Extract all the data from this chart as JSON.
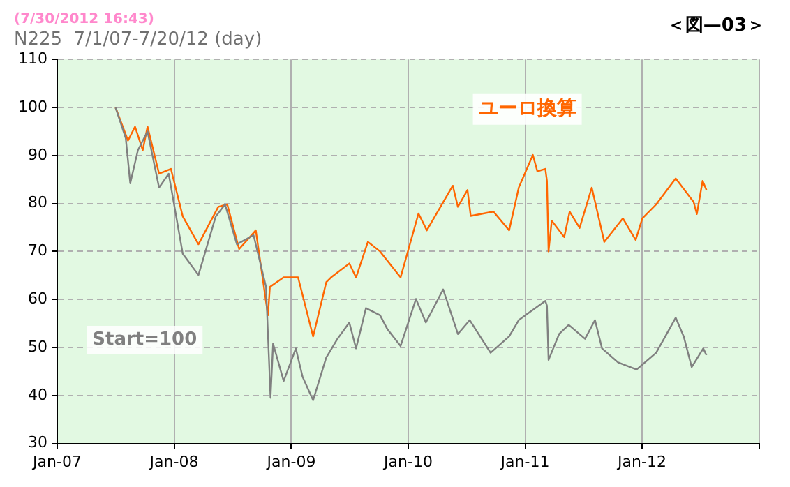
{
  "chart_data": {
    "type": "line",
    "title": "(7/30/2012 16:43)",
    "subtitle": "N225  7/1/07-7/20/12 (day)",
    "annotations": [
      "＜図—03＞",
      "Start=100"
    ],
    "xlim": [
      "2007-01",
      "2013-01"
    ],
    "xticks": [
      {
        "value": "2007-01",
        "label": "Jan-07"
      },
      {
        "value": "2008-01",
        "label": "Jan-08"
      },
      {
        "value": "2009-01",
        "label": "Jan-09"
      },
      {
        "value": "2010-01",
        "label": "Jan-10"
      },
      {
        "value": "2011-01",
        "label": "Jan-11"
      },
      {
        "value": "2012-01",
        "label": "Jan-12"
      },
      {
        "value": "2013-01",
        "label": null
      }
    ],
    "ylim": [
      30,
      110
    ],
    "yticks": [
      30,
      40,
      50,
      60,
      70,
      80,
      90,
      100,
      110
    ],
    "grid": true,
    "legend": false,
    "marker": "none",
    "line_style": "solid",
    "series": [
      {
        "color": "#808080",
        "x": [
          "2007-07-02",
          "2007-08-03",
          "2007-08-17",
          "2007-09-10",
          "2007-10-10",
          "2007-11-15",
          "2007-12-15",
          "2008-01-28",
          "2008-03-17",
          "2008-05-10",
          "2008-06-08",
          "2008-07-15",
          "2008-09-05",
          "2008-10-14",
          "2008-10-28",
          "2008-11-05",
          "2008-12-08",
          "2009-01-15",
          "2009-02-05",
          "2009-03-10",
          "2009-04-20",
          "2009-05-25",
          "2009-07-01",
          "2009-07-22",
          "2009-08-22",
          "2009-10-05",
          "2009-10-28",
          "2009-12-08",
          "2010-01-25",
          "2010-02-25",
          "2010-04-20",
          "2010-06-05",
          "2010-07-12",
          "2010-09-15",
          "2010-11-12",
          "2010-12-12",
          "2011-03-05",
          "2011-03-10",
          "2011-03-15",
          "2011-04-17",
          "2011-05-17",
          "2011-07-07",
          "2011-08-07",
          "2011-08-29",
          "2011-10-18",
          "2011-12-15",
          "2012-02-14",
          "2012-04-15",
          "2012-05-10",
          "2012-06-04",
          "2012-07-10",
          "2012-07-20"
        ],
        "values": [
          100,
          93.6,
          84.2,
          91.1,
          95,
          83.3,
          86.2,
          69.5,
          65.1,
          77.3,
          79.8,
          71.5,
          73.4,
          62.6,
          39.5,
          50.8,
          43,
          49.8,
          43.9,
          39,
          47.9,
          51.8,
          55.2,
          49.8,
          58.2,
          56.7,
          53.8,
          50.3,
          60.1,
          55.2,
          62.1,
          52.8,
          55.7,
          48.9,
          52.3,
          55.7,
          59.7,
          58.7,
          47.4,
          52.8,
          54.7,
          51.8,
          55.7,
          49.8,
          46.9,
          45.4,
          48.9,
          56.2,
          52.3,
          45.9,
          49.8,
          48.4
        ]
      },
      {
        "name": "ユーロ換算",
        "color": "#ff6600",
        "x": [
          "2007-07-02",
          "2007-08-10",
          "2007-09-01",
          "2007-09-25",
          "2007-10-10",
          "2007-11-15",
          "2007-12-22",
          "2008-01-28",
          "2008-03-17",
          "2008-05-18",
          "2008-06-15",
          "2008-07-22",
          "2008-09-12",
          "2008-10-20",
          "2008-10-26",
          "2008-12-08",
          "2009-01-22",
          "2009-03-10",
          "2009-04-20",
          "2009-05-05",
          "2009-07-01",
          "2009-07-22",
          "2009-08-28",
          "2009-10-05",
          "2009-12-08",
          "2010-02-02",
          "2010-02-28",
          "2010-05-20",
          "2010-06-05",
          "2010-07-05",
          "2010-07-15",
          "2010-09-24",
          "2010-11-12",
          "2010-12-12",
          "2011-01-25",
          "2011-02-08",
          "2011-03-05",
          "2011-03-10",
          "2011-03-15",
          "2011-03-25",
          "2011-05-03",
          "2011-05-20",
          "2011-06-20",
          "2011-07-28",
          "2011-09-05",
          "2011-11-02",
          "2011-12-12",
          "2012-01-02",
          "2012-02-14",
          "2012-04-15",
          "2012-06-10",
          "2012-06-20",
          "2012-07-08",
          "2012-07-20"
        ],
        "values": [
          100,
          93.1,
          96,
          91.1,
          96,
          86.2,
          87.2,
          77.3,
          71.5,
          79.3,
          79.8,
          70.5,
          74.4,
          56.7,
          62.6,
          64.6,
          64.6,
          52.3,
          63.6,
          64.6,
          67.5,
          64.6,
          72,
          70,
          64.6,
          77.9,
          74.4,
          83.7,
          79.3,
          82.8,
          77.4,
          78.3,
          74.4,
          83.3,
          90.1,
          86.7,
          87.2,
          84.7,
          70,
          76.4,
          73,
          78.3,
          74.9,
          83.3,
          72,
          76.9,
          72.4,
          76.9,
          79.8,
          85.2,
          80.3,
          77.8,
          84.7,
          82.8
        ]
      }
    ]
  }
}
